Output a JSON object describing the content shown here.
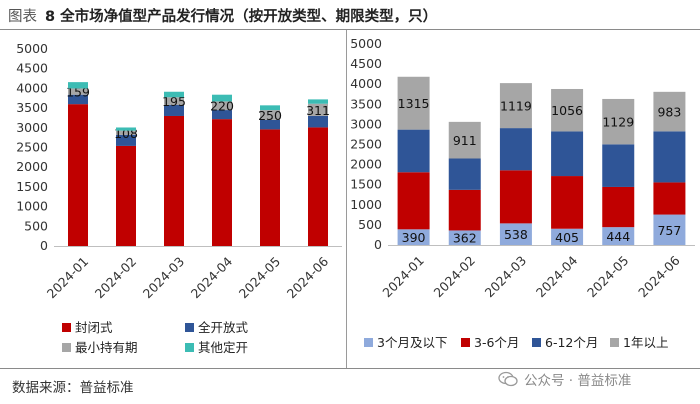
{
  "header": {
    "fig_label": "图表",
    "title": "8 全市场净值型产品发行情况（按开放类型、期限类型，只）"
  },
  "footer": {
    "source": "数据来源：普益标准",
    "watermark": "公众号 · 普益标准"
  },
  "chart_data": [
    {
      "type": "bar",
      "stacked": true,
      "categories": [
        "2024-01",
        "2024-02",
        "2024-03",
        "2024-04",
        "2024-05",
        "2024-06"
      ],
      "ylim": [
        0,
        5000
      ],
      "yticks": [
        0,
        500,
        1000,
        1500,
        2000,
        2500,
        3000,
        3500,
        4000,
        4500,
        5000
      ],
      "grid": false,
      "legend_position": "bottom",
      "series": [
        {
          "name": "封闭式",
          "color": "#C00000",
          "values": [
            3600,
            2540,
            3300,
            3220,
            2960,
            3010
          ]
        },
        {
          "name": "全开放式",
          "color": "#2F5597",
          "values": [
            240,
            280,
            280,
            230,
            240,
            290
          ]
        },
        {
          "name": "最小持有期",
          "color": "#A6A6A6",
          "values": [
            159,
            108,
            195,
            220,
            250,
            311
          ],
          "labeled": true
        },
        {
          "name": "其他定开",
          "color": "#3CBCB4",
          "values": [
            160,
            80,
            140,
            170,
            120,
            110
          ]
        }
      ]
    },
    {
      "type": "bar",
      "stacked": true,
      "categories": [
        "2024-01",
        "2024-02",
        "2024-03",
        "2024-04",
        "2024-05",
        "2024-06"
      ],
      "ylim": [
        0,
        5000
      ],
      "yticks": [
        0,
        500,
        1000,
        1500,
        2000,
        2500,
        3000,
        3500,
        4000,
        4500,
        5000
      ],
      "grid": false,
      "legend_position": "bottom",
      "series": [
        {
          "name": "3个月及以下",
          "color": "#8FAADC",
          "values": [
            390,
            362,
            538,
            405,
            444,
            757
          ],
          "labeled": true
        },
        {
          "name": "3-6个月",
          "color": "#C00000",
          "values": [
            1420,
            1010,
            1320,
            1310,
            1000,
            800
          ]
        },
        {
          "name": "6-12个月",
          "color": "#2F5597",
          "values": [
            1060,
            780,
            1050,
            1110,
            1060,
            1270
          ]
        },
        {
          "name": "1年以上",
          "color": "#A6A6A6",
          "values": [
            1315,
            911,
            1119,
            1056,
            1129,
            983
          ],
          "labeled": true
        }
      ]
    }
  ]
}
